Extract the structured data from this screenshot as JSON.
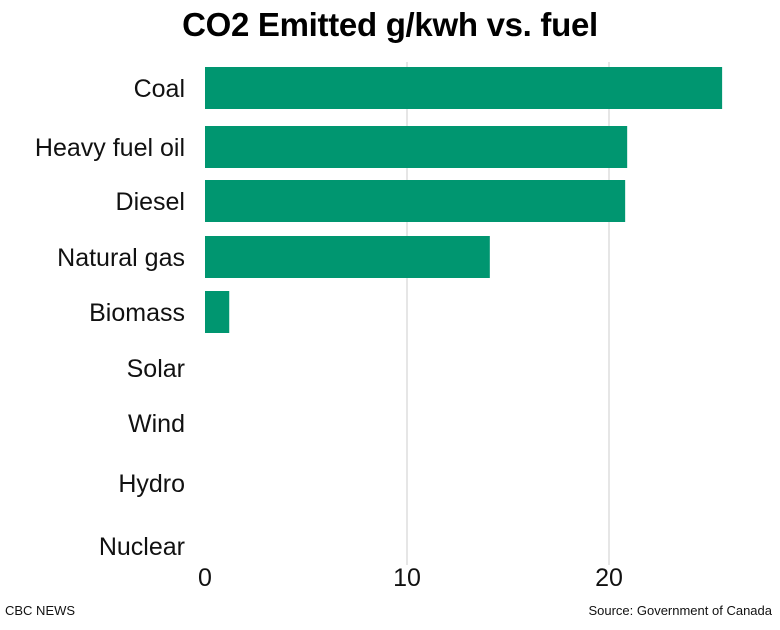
{
  "chart_data": {
    "type": "bar",
    "orientation": "horizontal",
    "title": "CO2 Emitted g/kwh vs. fuel",
    "categories": [
      "Coal",
      "Heavy fuel oil",
      "Diesel",
      "Natural gas",
      "Biomass",
      "Solar",
      "Wind",
      "Hydro",
      "Nuclear"
    ],
    "values": [
      25.6,
      20.9,
      20.8,
      14.1,
      1.2,
      0,
      0,
      0,
      0
    ],
    "xlim": [
      0,
      27
    ],
    "xticks": [
      "0",
      "10",
      "20"
    ],
    "xtick_values": [
      0,
      10,
      20
    ],
    "grid": "vertical",
    "legend": "none",
    "bar_color": "#009670",
    "grid_color": "#e6e6e6"
  },
  "footer": {
    "credit": "CBC NEWS",
    "source": "Source:  Government of Canada"
  }
}
